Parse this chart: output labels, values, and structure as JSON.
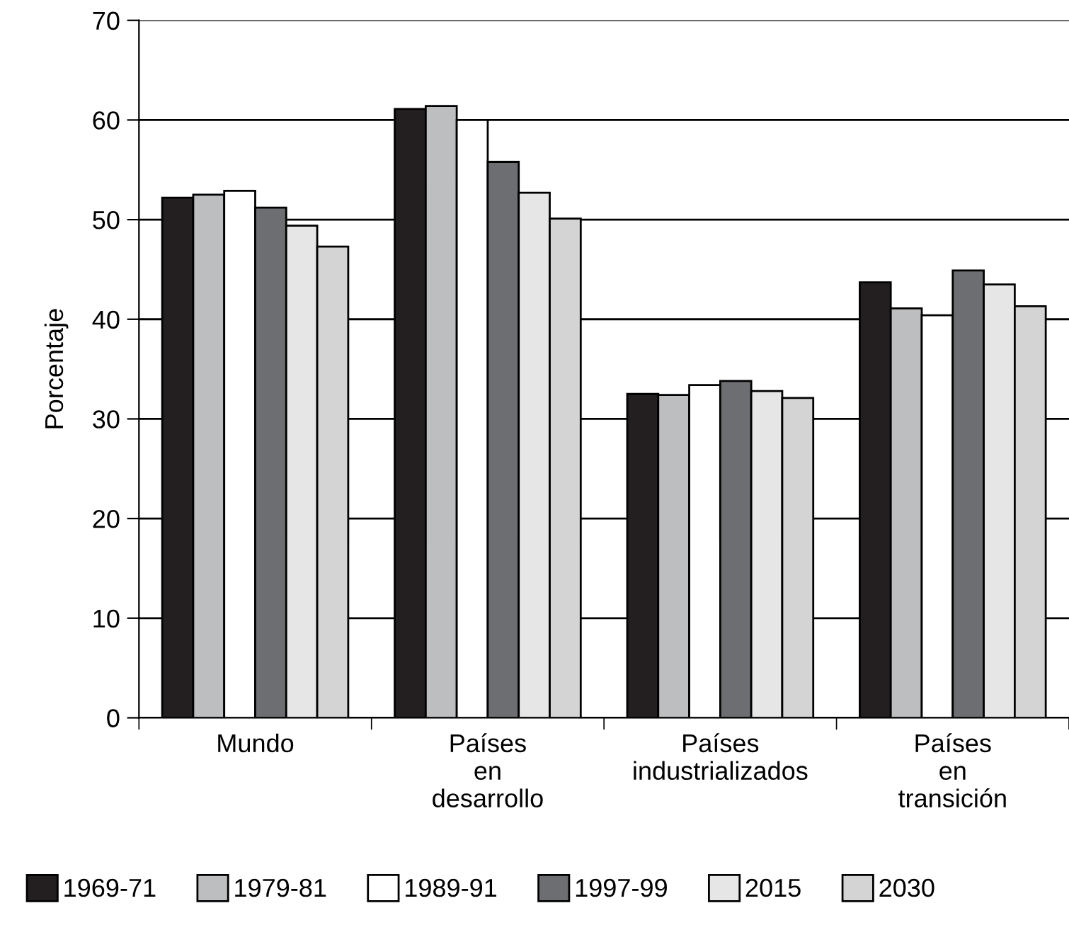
{
  "chart_data": {
    "type": "bar",
    "ylabel": "Porcentaje",
    "categories": [
      "Mundo",
      "Países\nen\ndesarrollo",
      "Países\nindustrializados",
      "Países\nen\ntransición"
    ],
    "series": [
      {
        "name": "1969-71",
        "color": "#231f20",
        "values": [
          52.2,
          61.1,
          32.5,
          43.7
        ]
      },
      {
        "name": "1979-81",
        "color": "#bcbec0",
        "values": [
          52.5,
          61.4,
          32.4,
          41.1
        ]
      },
      {
        "name": "1989-91",
        "color": "#ffffff",
        "values": [
          52.9,
          60.0,
          33.4,
          40.4
        ]
      },
      {
        "name": "1997-99",
        "color": "#6d6e71",
        "values": [
          51.2,
          55.8,
          33.8,
          44.9
        ]
      },
      {
        "name": "2015",
        "color": "#e6e6e6",
        "values": [
          49.4,
          52.7,
          32.8,
          43.5
        ]
      },
      {
        "name": "2030",
        "color": "#d4d4d4",
        "values": [
          47.3,
          50.1,
          32.1,
          41.3
        ]
      }
    ],
    "ylim": [
      0,
      70
    ],
    "yticks": [
      0,
      10,
      20,
      30,
      40,
      50,
      60,
      70
    ],
    "grid": "y",
    "legend": "bottom"
  }
}
